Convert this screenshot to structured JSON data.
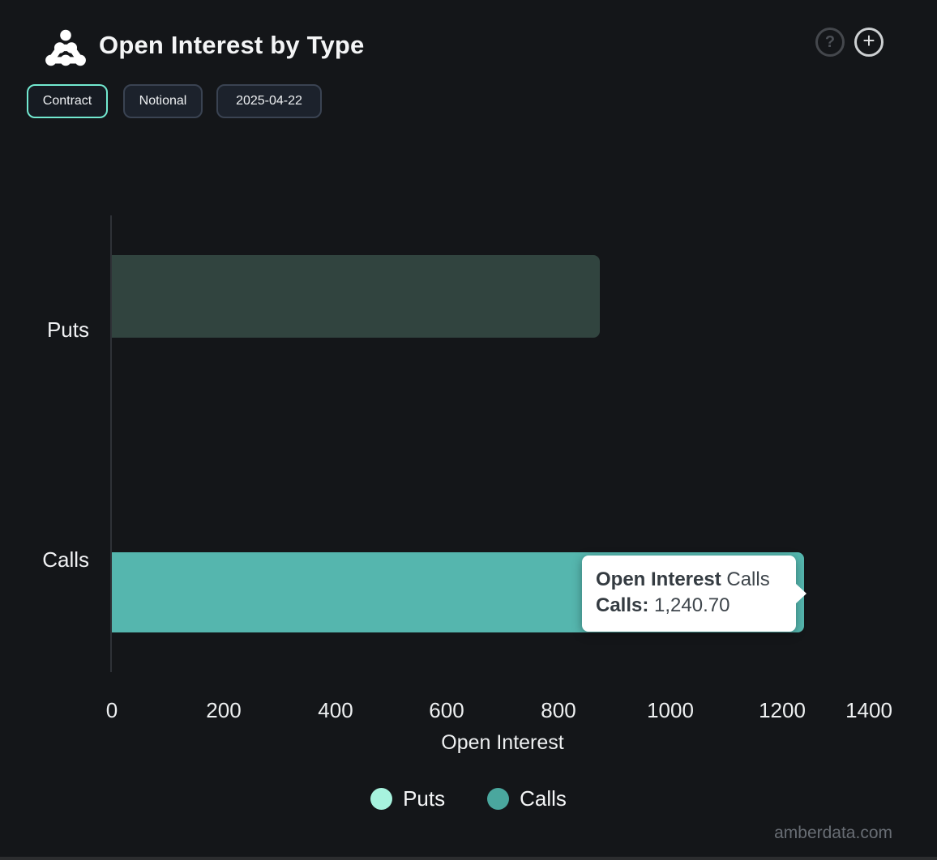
{
  "header": {
    "title": "Open Interest by Type",
    "help_glyph": "?",
    "add_glyph": "+"
  },
  "toolbar": {
    "buttons": [
      {
        "label": "Contract",
        "active": true
      },
      {
        "label": "Notional",
        "active": false
      },
      {
        "label": "2025-04-22",
        "active": false
      }
    ]
  },
  "chart_data": {
    "type": "bar",
    "orientation": "horizontal",
    "title": "Open Interest by Type",
    "categories": [
      "Puts",
      "Calls"
    ],
    "series": [
      {
        "name": "Puts",
        "color": "#a7f3de",
        "rendered_bar_color": "#31443f",
        "values": [
          875,
          null
        ]
      },
      {
        "name": "Calls",
        "color": "#55b6ae",
        "values": [
          null,
          1240.7
        ]
      }
    ],
    "xlabel": "Open Interest",
    "x_ticks": [
      "0",
      "200",
      "400",
      "600",
      "800",
      "1000",
      "1200",
      "1400"
    ],
    "xlim": [
      0,
      1400
    ],
    "grid": false,
    "legend_position": "bottom"
  },
  "tooltip": {
    "series_bold": "Open Interest",
    "series_rest": "Calls",
    "row_label": "Calls:",
    "row_value": "1,240.70"
  },
  "legend": {
    "items": [
      {
        "label": "Puts",
        "color": "#a7f3de"
      },
      {
        "label": "Calls",
        "color": "#4aa79e"
      }
    ]
  },
  "colors": {
    "background": "#141619",
    "accent_active_border": "#72e9d0",
    "puts_bar": "#31443f",
    "calls_bar": "#55b6ae",
    "tooltip_bg": "#ffffff"
  },
  "footer": {
    "watermark": "amberdata.com"
  }
}
